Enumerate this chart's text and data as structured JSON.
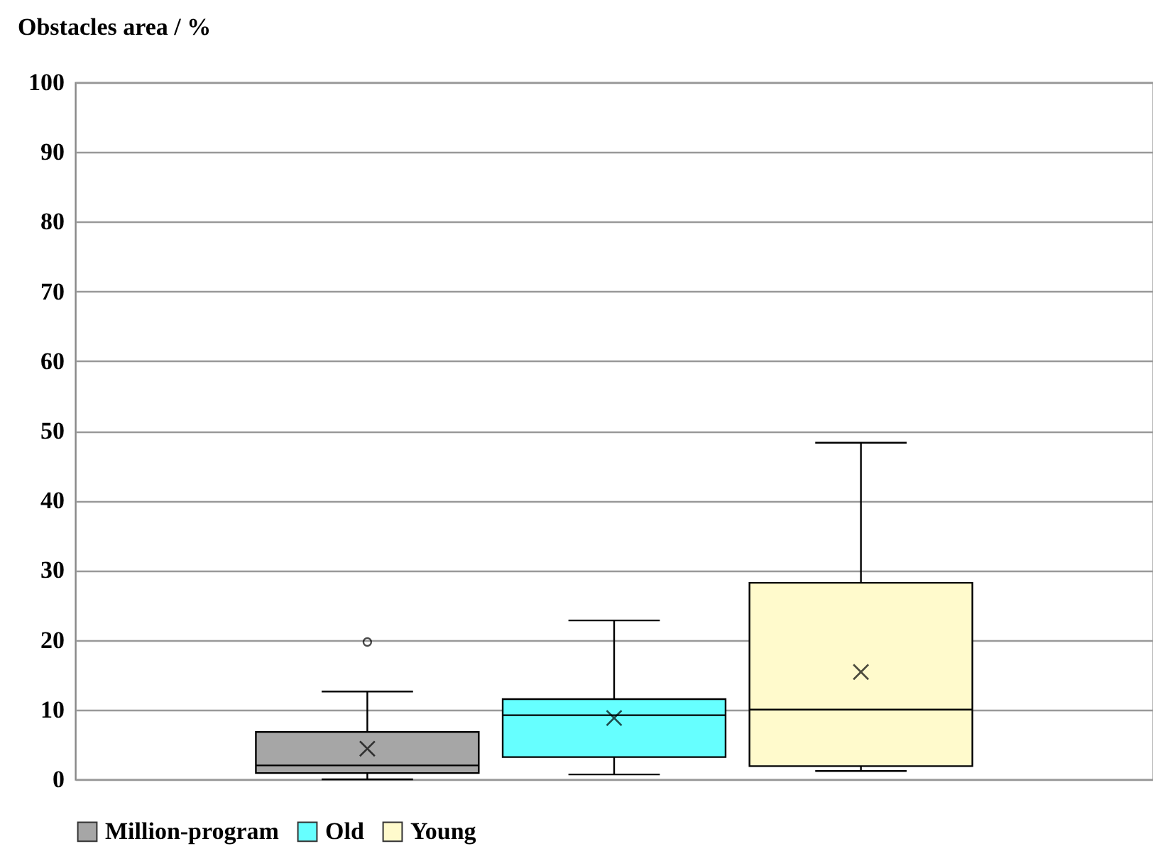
{
  "chart_data": {
    "type": "box",
    "ylabel": "Obstacles area / %",
    "categories": [
      null
    ],
    "series": [
      {
        "name": "Million-program",
        "color": "#a6a6a6",
        "boxes": [
          {
            "low": 0,
            "q1": 0.9,
            "median": 2.0,
            "q3": 6.8,
            "high": 12.6,
            "mean": 4.4,
            "outliers": [
              19.7
            ]
          }
        ]
      },
      {
        "name": "Old",
        "color": "#66ffff",
        "boxes": [
          {
            "low": 0.7,
            "q1": 3.2,
            "median": 9.2,
            "q3": 11.5,
            "high": 22.8,
            "mean": 8.8
          }
        ]
      },
      {
        "name": "Young",
        "color": "#fffacc",
        "boxes": [
          {
            "low": 1.2,
            "q1": 1.9,
            "median": 10.0,
            "q3": 28.2,
            "high": 48.3,
            "mean": 15.4
          }
        ]
      }
    ],
    "ylim": [
      0,
      100
    ],
    "yticks": [
      0,
      10,
      20,
      30,
      40,
      50,
      60,
      70,
      80,
      90,
      100
    ],
    "grid": true,
    "legend": "bottom"
  }
}
